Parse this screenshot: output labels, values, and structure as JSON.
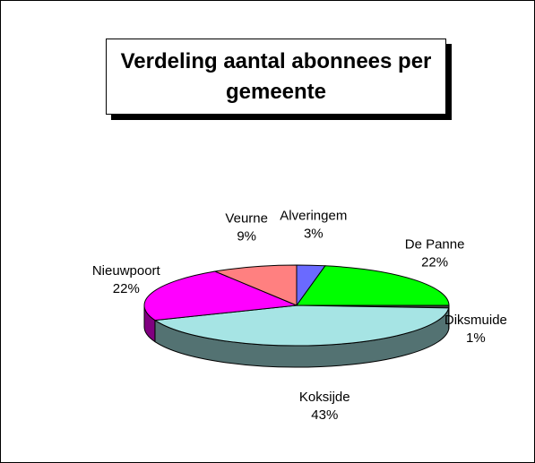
{
  "chart_data": {
    "type": "pie3d",
    "title": "Verdeling aantal abonnees per gemeente",
    "categories": [
      "Alveringem",
      "De Panne",
      "Diksmuide",
      "Koksijde",
      "Nieuwpoort",
      "Veurne"
    ],
    "values": [
      3,
      22,
      1,
      43,
      22,
      9
    ],
    "value_labels": [
      "3%",
      "22%",
      "1%",
      "43%",
      "22%",
      "9%"
    ],
    "colors": [
      "#6a6aff",
      "#00ff00",
      "#404040",
      "#a6e4e4",
      "#ff00ff",
      "#ff8080"
    ]
  }
}
